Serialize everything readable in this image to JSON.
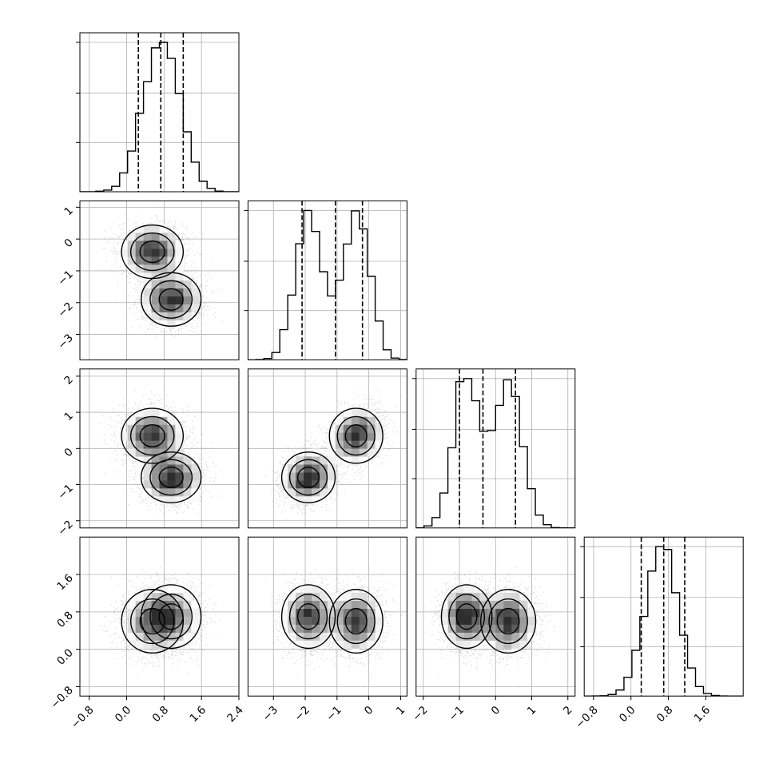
{
  "chart_data": {
    "type": "scatter",
    "subtype": "corner-plot",
    "title": "",
    "n_params": 4,
    "ranges": [
      [
        -1.0,
        2.4
      ],
      [
        -3.8,
        1.2
      ],
      [
        -2.2,
        2.2
      ],
      [
        -1.0,
        2.4
      ]
    ],
    "tick_values": [
      [
        -0.8,
        0.0,
        0.8,
        1.6,
        2.4
      ],
      [
        -3,
        -2,
        -1,
        0,
        1
      ],
      [
        -2,
        -1,
        0,
        1,
        2
      ],
      [
        -0.8,
        0.0,
        0.8,
        1.6
      ]
    ],
    "tick_labels": [
      [
        "−0.8",
        "0.0",
        "0.8",
        "1.6",
        "2.4"
      ],
      [
        "−3",
        "−2",
        "−1",
        "0",
        "1"
      ],
      [
        "−2",
        "−1",
        "0",
        "1",
        "2"
      ],
      [
        "−0.8",
        "0.0",
        "0.8",
        "1.6"
      ]
    ],
    "y_tick_labels": [
      [],
      [
        "1",
        "0",
        "−1",
        "−2",
        "−3"
      ],
      [
        "2",
        "1",
        "0",
        "−1",
        "−2"
      ],
      [
        "1.6",
        "0.8",
        "0.0",
        "−0.8"
      ]
    ],
    "quantiles": [
      [
        0.25,
        0.73,
        1.21
      ],
      [
        -2.1,
        -1.05,
        -0.2
      ],
      [
        -1.0,
        -0.35,
        0.55
      ],
      [
        0.22,
        0.7,
        1.15
      ]
    ],
    "components": [
      {
        "weight": 0.5,
        "mean": [
          0.55,
          -0.4,
          0.35,
          0.6
        ],
        "sd": [
          0.33,
          0.42,
          0.38,
          0.34
        ]
      },
      {
        "weight": 0.5,
        "mean": [
          0.95,
          -1.9,
          -0.8,
          0.7
        ],
        "sd": [
          0.32,
          0.42,
          0.35,
          0.34
        ]
      }
    ],
    "histogram_bins": 20,
    "grid": true,
    "colors": {
      "line": "#000000",
      "grid": "#b0b0b0",
      "points": "#7a7a7a",
      "density": "#000000"
    }
  }
}
